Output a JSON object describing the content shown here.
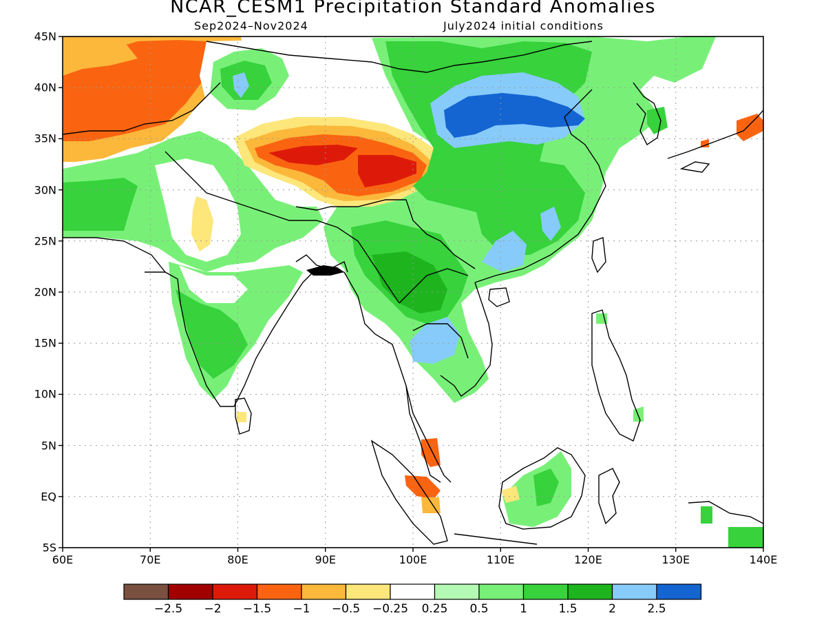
{
  "title": "NCAR_CESM1 Precipitation Standard Anomalies",
  "subtitle_period": "Sep2024–Nov2024",
  "subtitle_init": "July2024 initial conditions",
  "map": {
    "lon_range": [
      60,
      140
    ],
    "lat_range": [
      -5,
      45
    ],
    "x_ticks": [
      "60E",
      "70E",
      "80E",
      "90E",
      "100E",
      "110E",
      "120E",
      "130E",
      "140E"
    ],
    "y_ticks": [
      "45N",
      "40N",
      "35N",
      "30N",
      "25N",
      "20N",
      "15N",
      "10N",
      "5N",
      "EQ",
      "5S"
    ],
    "grid": "dotted"
  },
  "colorbar": {
    "colors": [
      "#7a5040",
      "#a00000",
      "#dd1a0a",
      "#fa6410",
      "#fbb83a",
      "#fde67a",
      "#ffffff",
      "#b4fab4",
      "#78f078",
      "#37d23c",
      "#1eb41e",
      "#87cbfa",
      "#1464d2"
    ],
    "labels": [
      "−2.5",
      "−2",
      "−1.5",
      "−1",
      "−0.5",
      "−0.25",
      "0.25",
      "0.5",
      "1",
      "1.5",
      "2",
      "2.5"
    ]
  }
}
